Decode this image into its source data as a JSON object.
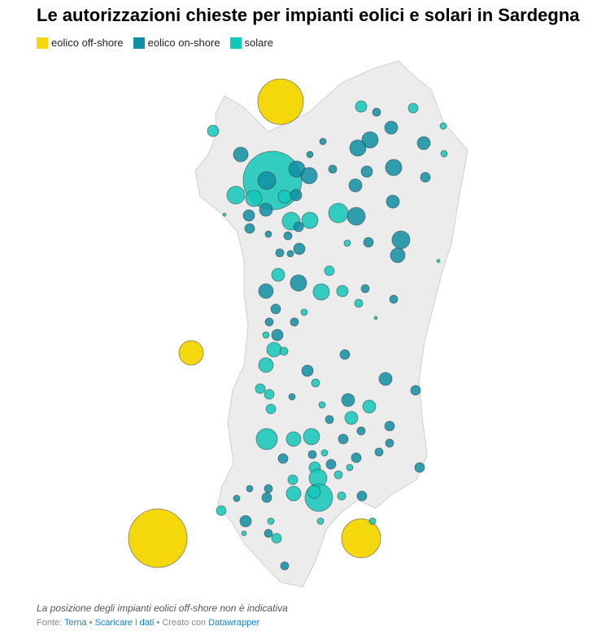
{
  "title": "Le autorizzazioni chieste per impianti eolici e solari in Sardegna",
  "legend": [
    {
      "label": "eolico off-shore",
      "color": "#f5d80b"
    },
    {
      "label": "eolico on-shore",
      "color": "#0f8fa3"
    },
    {
      "label": "solare",
      "color": "#12c8b8"
    }
  ],
  "note": "La posizione degli impianti eolici off-shore non è indicativa",
  "footer": {
    "source_label": "Fonte:",
    "source": "Terna",
    "sep": "•",
    "download": "Scaricare i dati",
    "created": "Creato con",
    "tool": "Datawrapper"
  }
}
